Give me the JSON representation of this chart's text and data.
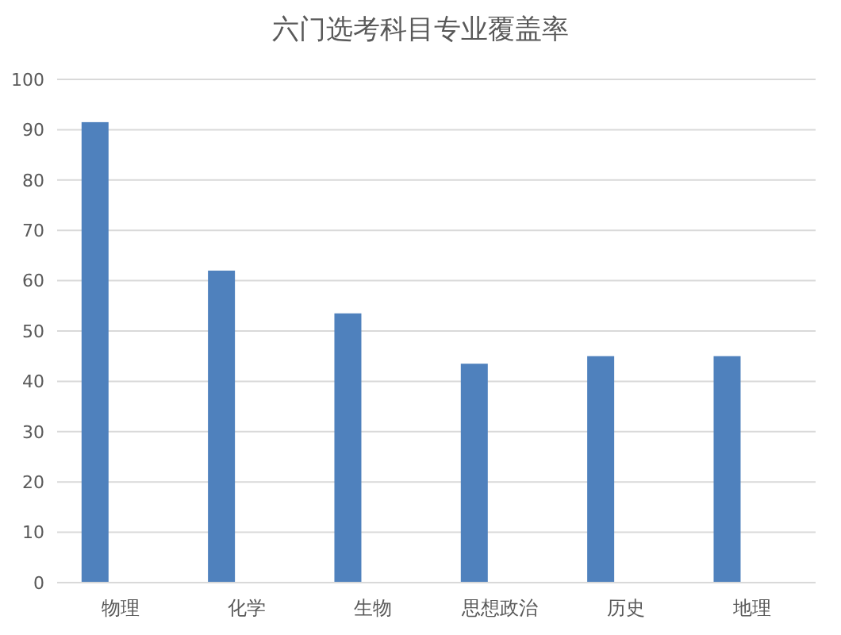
{
  "chart_data": {
    "type": "bar",
    "title": "六门选考科目专业覆盖率",
    "categories": [
      "物理",
      "化学",
      "生物",
      "思想政治",
      "历史",
      "地理"
    ],
    "values": [
      91.5,
      62,
      53.5,
      43.5,
      45,
      45
    ],
    "color": "#4f81bd",
    "ylim": [
      0,
      100
    ],
    "yticks": [
      0,
      10,
      20,
      30,
      40,
      50,
      60,
      70,
      80,
      90,
      100
    ],
    "grid": "y"
  }
}
